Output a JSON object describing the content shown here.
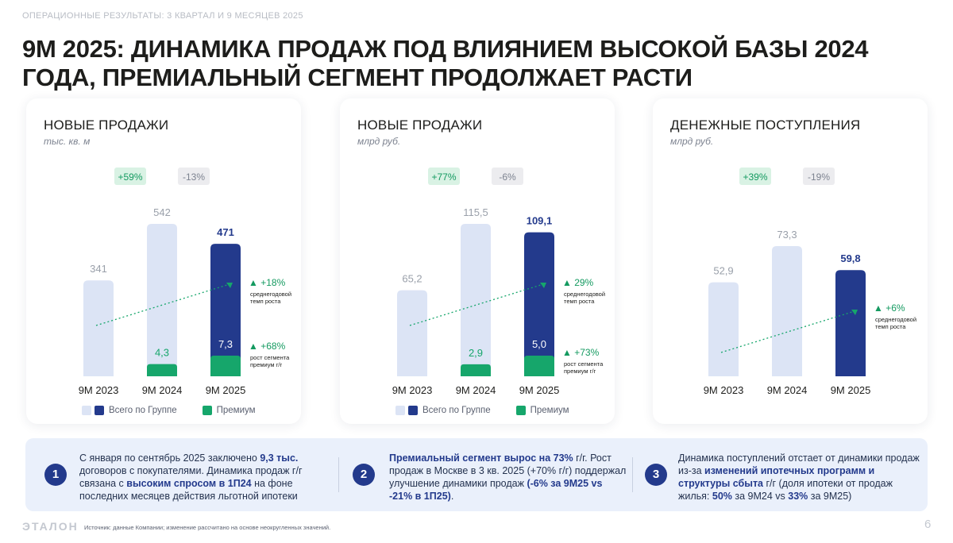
{
  "header": {
    "section": "ОПЕРАЦИОННЫЕ РЕЗУЛЬТАТЫ: 3 КВАРТАЛ И 9 МЕСЯЦЕВ 2025",
    "title": "9М 2025: ДИНАМИКА ПРОДАЖ ПОД ВЛИЯНИЕМ ВЫСОКОЙ БАЗЫ 2024 ГОДА, ПРЕМИАЛЬНЫЙ СЕГМЕНТ ПРОДОЛЖАЕТ РАСТИ"
  },
  "colors": {
    "total_light": "#dce4f5",
    "total_dark": "#233a8c",
    "premium": "#16a66b",
    "badge_green_bg": "#d9f2e4",
    "badge_grey_bg": "#ececef"
  },
  "legend": {
    "total": "Всего по Группе",
    "premium": "Премиум"
  },
  "chart_data": [
    {
      "type": "bar",
      "title": "НОВЫЕ ПРОДАЖИ",
      "unit": "тыс. кв. м",
      "categories": [
        "9M 2023",
        "9M 2024",
        "9M 2025"
      ],
      "total_labels": [
        "341",
        "542",
        "471"
      ],
      "series": [
        {
          "name": "Всего по Группе",
          "values": [
            341,
            542,
            471
          ]
        },
        {
          "name": "Премиум",
          "values": [
            null,
            4.3,
            7.3
          ],
          "labels": [
            "",
            "4,3",
            "7,3"
          ]
        }
      ],
      "growth_badges": [
        "+59%",
        "-13%"
      ],
      "cagr": {
        "value": "+18%",
        "label": "среднегодовой темп роста"
      },
      "premium_growth": {
        "value": "+68%",
        "label": "рост сегмента премиум г/г"
      },
      "ylim": [
        0,
        542
      ]
    },
    {
      "type": "bar",
      "title": "НОВЫЕ ПРОДАЖИ",
      "unit": "млрд руб.",
      "categories": [
        "9M 2023",
        "9M 2024",
        "9M 2025"
      ],
      "total_labels": [
        "65,2",
        "115,5",
        "109,1"
      ],
      "series": [
        {
          "name": "Всего по Группе",
          "values": [
            65.2,
            115.5,
            109.1
          ]
        },
        {
          "name": "Премиум",
          "values": [
            null,
            2.9,
            5.0
          ],
          "labels": [
            "",
            "2,9",
            "5,0"
          ]
        }
      ],
      "growth_badges": [
        "+77%",
        "-6%"
      ],
      "cagr": {
        "value": "29%",
        "label": "среднегодовой темп роста"
      },
      "premium_growth": {
        "value": "+73%",
        "label": "рост сегмента премиум г/г"
      },
      "ylim": [
        0,
        115.5
      ]
    },
    {
      "type": "bar",
      "title": "ДЕНЕЖНЫЕ ПОСТУПЛЕНИЯ",
      "unit": "млрд руб.",
      "categories": [
        "9M 2023",
        "9M 2024",
        "9M 2025"
      ],
      "total_labels": [
        "52,9",
        "73,3",
        "59,8"
      ],
      "series": [
        {
          "name": "Всего по Группе",
          "values": [
            52.9,
            73.3,
            59.8
          ]
        }
      ],
      "growth_badges": [
        "+39%",
        "-19%"
      ],
      "cagr": {
        "value": "+6%",
        "label": "среднегодовой темп роста"
      },
      "premium_growth": null,
      "ylim": [
        0,
        73.3
      ]
    }
  ],
  "notes": [
    {
      "num": "1",
      "parts": [
        [
          "С января по сентябрь 2025 заключено ",
          false
        ],
        [
          "9,3 тыс.",
          true
        ],
        [
          " договоров с покупателями. Динамика продаж г/г связана с ",
          false
        ],
        [
          "высоким спросом в 1П24",
          true
        ],
        [
          " на фоне последних месяцев действия льготной ипотеки",
          false
        ]
      ]
    },
    {
      "num": "2",
      "parts": [
        [
          "Премиальный сегмент вырос на 73%",
          true
        ],
        [
          " г/г. Рост продаж в Москве в 3 кв. 2025 (+70% г/г) поддержал улучшение динамики продаж ",
          false
        ],
        [
          "(-6% за 9М25 vs -21% в 1П25)",
          true
        ],
        [
          ".",
          false
        ]
      ]
    },
    {
      "num": "3",
      "parts": [
        [
          "Динамика поступлений отстает от динамики продаж из-за ",
          false
        ],
        [
          "изменений ипотечных программ и структуры сбыта",
          true
        ],
        [
          " г/г (доля ипотеки от продаж жилья: ",
          false
        ],
        [
          "50%",
          true
        ],
        [
          " за 9М24 vs ",
          false
        ],
        [
          "33%",
          true
        ],
        [
          " за 9М25)",
          false
        ]
      ]
    }
  ],
  "footer": {
    "logo": "ЭТАЛОН",
    "source": "Источник: данные Компании; изменение рассчитано на основе неокругленных значений.",
    "page": "6"
  }
}
